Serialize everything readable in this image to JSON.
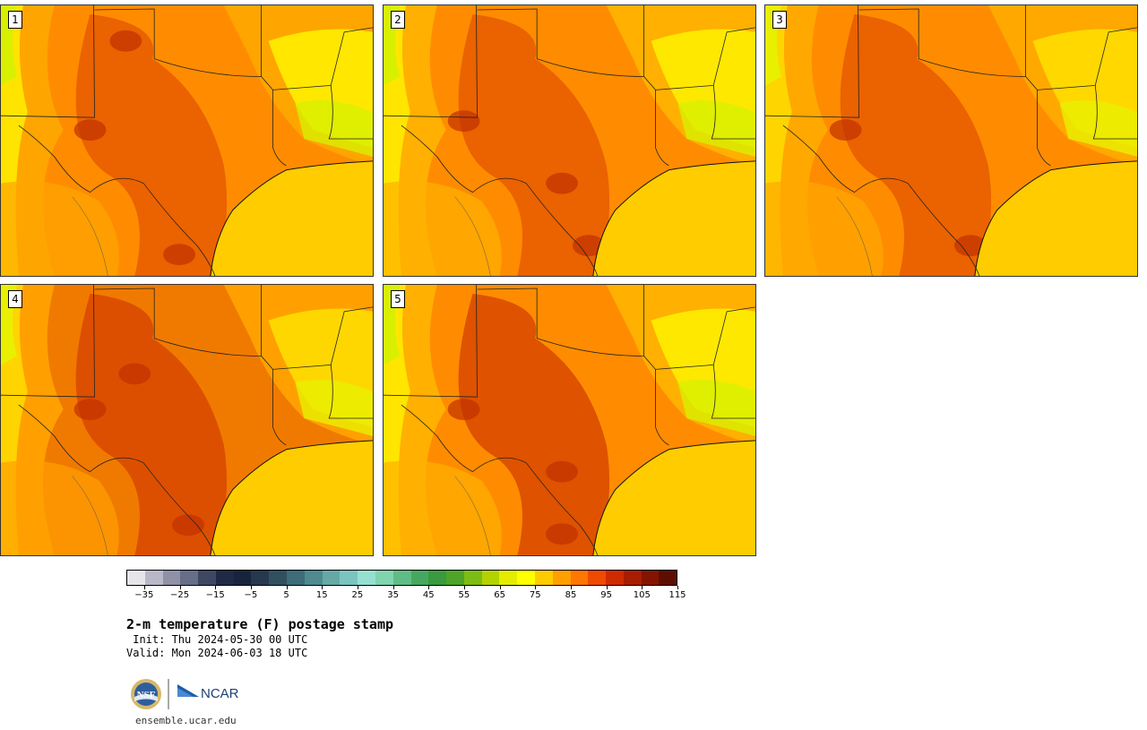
{
  "panels": [
    {
      "label": "1"
    },
    {
      "label": "2"
    },
    {
      "label": "3"
    },
    {
      "label": "4"
    },
    {
      "label": "5"
    }
  ],
  "colorbar": {
    "colors": [
      "#e6e6ea",
      "#b8b8c8",
      "#9090a6",
      "#666e88",
      "#3e4862",
      "#1e2a46",
      "#18243e",
      "#26384e",
      "#305060",
      "#3e6c78",
      "#4e8a90",
      "#66a8a6",
      "#7cc4c0",
      "#96e0d2",
      "#80d4ae",
      "#60bc86",
      "#46a860",
      "#3a9a40",
      "#4ea428",
      "#7cbc14",
      "#b4d200",
      "#e4ec00",
      "#ffff00",
      "#ffcc00",
      "#ff9f00",
      "#ff7700",
      "#f04a00",
      "#d02a00",
      "#a81c00",
      "#841400",
      "#5e0e00"
    ],
    "tick_labels": [
      "−35",
      "−25",
      "−15",
      "−5",
      "5",
      "15",
      "25",
      "35",
      "45",
      "55",
      "65",
      "75",
      "85",
      "95",
      "105",
      "115"
    ],
    "min": -40,
    "max": 120
  },
  "title": "2-m temperature (F) postage stamp",
  "init": " Init: Thu 2024-05-30 00 UTC",
  "valid": "Valid: Mon 2024-06-03 18 UTC",
  "logos": {
    "nsf": "NSF",
    "ncar": "NCAR"
  },
  "site": "ensemble.ucar.edu"
}
